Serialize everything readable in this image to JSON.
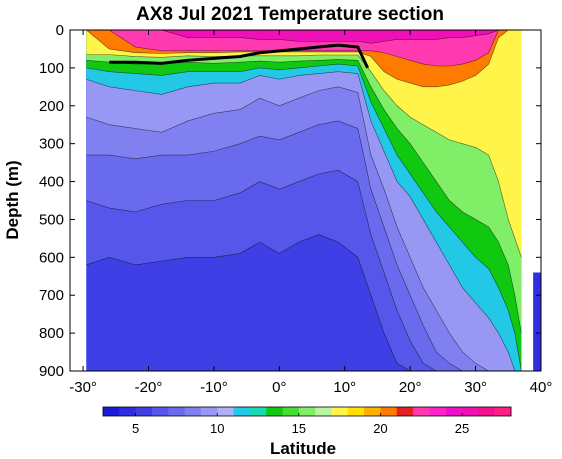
{
  "chart_data": {
    "type": "heatmap",
    "title": "AX8 Jul 2021 Temperature section",
    "xlabel": "Latitude",
    "ylabel": "Depth (m)",
    "x_range": [
      -32,
      40
    ],
    "y_range": [
      0,
      900
    ],
    "y_reversed": true,
    "x_ticks": [
      -30,
      -20,
      -10,
      0,
      10,
      20,
      30,
      40
    ],
    "x_tick_labels": [
      "-30°",
      "-20°",
      "-10°",
      "0°",
      "10°",
      "20°",
      "30°",
      "40°"
    ],
    "y_ticks": [
      0,
      100,
      200,
      300,
      400,
      500,
      600,
      700,
      800,
      900
    ],
    "y_tick_labels": [
      "0",
      "100",
      "200",
      "300",
      "400",
      "500",
      "600",
      "700",
      "800",
      "900"
    ],
    "data_extent_x": [
      -29.5,
      37
    ],
    "colorbar": {
      "range": [
        3,
        28
      ],
      "ticks": [
        5,
        10,
        15,
        20,
        25
      ],
      "tick_labels": [
        "5",
        "10",
        "15",
        "20",
        "25"
      ],
      "levels": [
        {
          "from": 3,
          "to": 4,
          "color": "#1a1ad9"
        },
        {
          "from": 4,
          "to": 5,
          "color": "#2e2ee0"
        },
        {
          "from": 5,
          "to": 6,
          "color": "#3f3fe6"
        },
        {
          "from": 6,
          "to": 7,
          "color": "#5656ea"
        },
        {
          "from": 7,
          "to": 8,
          "color": "#6a6aee"
        },
        {
          "from": 8,
          "to": 9,
          "color": "#8080f1"
        },
        {
          "from": 9,
          "to": 10,
          "color": "#9898f4"
        },
        {
          "from": 10,
          "to": 11,
          "color": "#b0b0f8"
        },
        {
          "from": 11,
          "to": 12,
          "color": "#22c8e6"
        },
        {
          "from": 12,
          "to": 13,
          "color": "#18d9b0"
        },
        {
          "from": 13,
          "to": 14,
          "color": "#10c810"
        },
        {
          "from": 14,
          "to": 15,
          "color": "#44dd33"
        },
        {
          "from": 15,
          "to": 16,
          "color": "#80ee66"
        },
        {
          "from": 16,
          "to": 17,
          "color": "#b8f5a0"
        },
        {
          "from": 17,
          "to": 18,
          "color": "#fff54a"
        },
        {
          "from": 18,
          "to": 19,
          "color": "#ffe000"
        },
        {
          "from": 19,
          "to": 20,
          "color": "#ffb000"
        },
        {
          "from": 20,
          "to": 21,
          "color": "#ff7a00"
        },
        {
          "from": 21,
          "to": 22,
          "color": "#e62020"
        },
        {
          "from": 22,
          "to": 23,
          "color": "#ff3ab0"
        },
        {
          "from": 23,
          "to": 24,
          "color": "#ff22c8"
        },
        {
          "from": 24,
          "to": 25,
          "color": "#ee11cc"
        },
        {
          "from": 25,
          "to": 26,
          "color": "#f010b8"
        },
        {
          "from": 26,
          "to": 27,
          "color": "#f5108f"
        },
        {
          "from": 27,
          "to": 28,
          "color": "#ff1e86"
        }
      ]
    },
    "isotherm_depths": {
      "latitudes": [
        -29.5,
        -26,
        -22,
        -18,
        -14,
        -10,
        -6,
        -3,
        0,
        3,
        6,
        9,
        12,
        14,
        16,
        18,
        20,
        22,
        24,
        26,
        28,
        30,
        32,
        33.5,
        35,
        36,
        37
      ],
      "levels": [
        {
          "temp": 27,
          "depth": [
            0,
            0,
            0,
            0,
            0,
            0,
            0,
            0,
            0,
            0,
            0,
            0,
            0,
            0,
            0,
            0,
            0,
            0,
            0,
            0,
            0,
            0,
            0,
            0,
            0,
            0,
            0
          ]
        },
        {
          "temp": 25,
          "depth": [
            0,
            0,
            0,
            0,
            20,
            20,
            20,
            25,
            25,
            30,
            30,
            30,
            30,
            35,
            30,
            25,
            25,
            25,
            25,
            20,
            20,
            15,
            10,
            0,
            0,
            0,
            0
          ]
        },
        {
          "temp": 22,
          "depth": [
            0,
            0,
            45,
            55,
            55,
            55,
            55,
            55,
            55,
            55,
            55,
            55,
            55,
            55,
            60,
            70,
            80,
            90,
            95,
            95,
            90,
            80,
            60,
            0,
            0,
            0,
            0
          ]
        },
        {
          "temp": 20,
          "depth": [
            0,
            50,
            60,
            62,
            60,
            60,
            58,
            58,
            58,
            58,
            58,
            58,
            58,
            70,
            110,
            130,
            140,
            150,
            150,
            145,
            135,
            120,
            90,
            20,
            0,
            0,
            0
          ]
        },
        {
          "temp": 17,
          "depth": [
            65,
            65,
            70,
            72,
            68,
            70,
            68,
            68,
            68,
            68,
            66,
            66,
            66,
            110,
            160,
            200,
            230,
            250,
            270,
            290,
            300,
            310,
            330,
            400,
            500,
            550,
            600
          ]
        },
        {
          "temp": 15,
          "depth": [
            80,
            85,
            90,
            90,
            85,
            88,
            85,
            82,
            85,
            82,
            80,
            78,
            80,
            150,
            210,
            260,
            300,
            350,
            400,
            450,
            480,
            500,
            520,
            560,
            620,
            700,
            800
          ]
        },
        {
          "temp": 13,
          "depth": [
            100,
            110,
            115,
            120,
            110,
            110,
            110,
            100,
            105,
            100,
            95,
            90,
            95,
            190,
            260,
            330,
            380,
            430,
            480,
            520,
            560,
            600,
            630,
            680,
            740,
            800,
            900
          ]
        },
        {
          "temp": 11,
          "depth": [
            130,
            150,
            160,
            170,
            150,
            140,
            140,
            120,
            130,
            120,
            115,
            110,
            115,
            240,
            320,
            400,
            440,
            500,
            560,
            620,
            680,
            720,
            760,
            800,
            850,
            900,
            900
          ]
        },
        {
          "temp": 9,
          "depth": [
            230,
            250,
            260,
            270,
            240,
            220,
            210,
            180,
            200,
            180,
            160,
            150,
            165,
            330,
            420,
            520,
            600,
            680,
            740,
            800,
            850,
            880,
            900,
            900,
            900,
            900,
            900
          ]
        },
        {
          "temp": 8,
          "depth": [
            330,
            330,
            340,
            330,
            330,
            320,
            300,
            280,
            290,
            270,
            250,
            240,
            260,
            420,
            520,
            620,
            700,
            780,
            850,
            880,
            900,
            900,
            900,
            900,
            900,
            900,
            900
          ]
        },
        {
          "temp": 7,
          "depth": [
            450,
            470,
            480,
            460,
            450,
            450,
            430,
            400,
            420,
            400,
            380,
            370,
            400,
            540,
            640,
            740,
            820,
            880,
            900,
            900,
            900,
            900,
            900,
            900,
            900,
            900,
            900
          ]
        },
        {
          "temp": 6,
          "depth": [
            620,
            600,
            620,
            610,
            600,
            600,
            590,
            560,
            590,
            560,
            540,
            560,
            600,
            700,
            800,
            880,
            900,
            900,
            900,
            900,
            900,
            900,
            900,
            900,
            900,
            900,
            900
          ]
        },
        {
          "temp": 5,
          "depth": [
            900,
            900,
            900,
            900,
            900,
            900,
            900,
            900,
            900,
            900,
            900,
            900,
            900,
            900,
            900,
            900,
            900,
            900,
            900,
            900,
            900,
            900,
            900,
            900,
            900,
            900,
            900
          ]
        }
      ]
    },
    "mixed_layer_depth": {
      "latitudes": [
        -26,
        -22,
        -18,
        -14,
        -10,
        -6,
        -3,
        0,
        3,
        6,
        9,
        12,
        13.5
      ],
      "depth": [
        85,
        85,
        88,
        80,
        75,
        70,
        60,
        55,
        50,
        45,
        40,
        45,
        100
      ]
    }
  }
}
